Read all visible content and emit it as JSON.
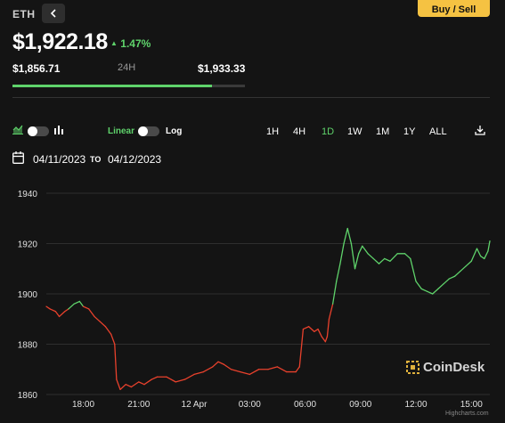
{
  "header": {
    "symbol": "ETH",
    "share_icon": "share-icon",
    "buy_label": "Buy / Sell"
  },
  "price": {
    "value": "$1,922.18",
    "change": "1.47%",
    "change_color": "#5fd36b"
  },
  "range": {
    "low": "$1,856.71",
    "label": "24H",
    "high": "$1,933.33",
    "position_fraction": 0.86
  },
  "controls": {
    "chart_type_icons": [
      "area-chart-icon",
      "bar-chart-icon"
    ],
    "scale_linear": "Linear",
    "scale_log": "Log",
    "timeframes": [
      "1H",
      "4H",
      "1D",
      "1W",
      "1M",
      "1Y",
      "ALL"
    ],
    "active_timeframe": "1D",
    "download_icon": "download-icon"
  },
  "dates": {
    "from": "04/11/2023",
    "to_label": "TO",
    "to": "04/12/2023"
  },
  "watermark": "CoinDesk",
  "credits": "Highcharts.com",
  "chart_data": {
    "type": "line",
    "title": "",
    "xlabel": "",
    "ylabel": "",
    "ylim": [
      1860,
      1940
    ],
    "y_ticks": [
      1860,
      1880,
      1900,
      1920,
      1940
    ],
    "x_ticks": [
      "18:00",
      "21:00",
      "12 Apr",
      "03:00",
      "06:00",
      "09:00",
      "12:00",
      "15:00"
    ],
    "x_tick_hours": [
      18,
      21,
      24,
      27,
      30,
      33,
      36,
      39
    ],
    "xlim_hours": [
      16,
      40
    ],
    "grid": true,
    "series": [
      {
        "color_up": "#5fd36b",
        "color_down": "#e8412c",
        "points": [
          [
            16.0,
            1895
          ],
          [
            16.2,
            1894
          ],
          [
            16.5,
            1893
          ],
          [
            16.7,
            1891
          ],
          [
            17.0,
            1893
          ],
          [
            17.2,
            1894
          ],
          [
            17.5,
            1896
          ],
          [
            17.8,
            1897
          ],
          [
            18.0,
            1895
          ],
          [
            18.3,
            1894
          ],
          [
            18.6,
            1891
          ],
          [
            18.9,
            1889
          ],
          [
            19.2,
            1887
          ],
          [
            19.5,
            1884
          ],
          [
            19.7,
            1880
          ],
          [
            19.8,
            1866
          ],
          [
            20.0,
            1862
          ],
          [
            20.3,
            1864
          ],
          [
            20.6,
            1863
          ],
          [
            21.0,
            1865
          ],
          [
            21.3,
            1864
          ],
          [
            21.7,
            1866
          ],
          [
            22.0,
            1867
          ],
          [
            22.5,
            1867
          ],
          [
            23.0,
            1865
          ],
          [
            23.5,
            1866
          ],
          [
            24.0,
            1868
          ],
          [
            24.5,
            1869
          ],
          [
            25.0,
            1871
          ],
          [
            25.3,
            1873
          ],
          [
            25.6,
            1872
          ],
          [
            26.0,
            1870
          ],
          [
            26.5,
            1869
          ],
          [
            27.0,
            1868
          ],
          [
            27.5,
            1870
          ],
          [
            28.0,
            1870
          ],
          [
            28.5,
            1871
          ],
          [
            29.0,
            1869
          ],
          [
            29.5,
            1869
          ],
          [
            29.7,
            1871
          ],
          [
            29.9,
            1886
          ],
          [
            30.2,
            1887
          ],
          [
            30.5,
            1885
          ],
          [
            30.7,
            1886
          ],
          [
            30.9,
            1883
          ],
          [
            31.1,
            1881
          ],
          [
            31.2,
            1883
          ],
          [
            31.3,
            1890
          ],
          [
            31.5,
            1896
          ],
          [
            31.7,
            1905
          ],
          [
            31.9,
            1912
          ],
          [
            32.1,
            1920
          ],
          [
            32.3,
            1926
          ],
          [
            32.5,
            1920
          ],
          [
            32.7,
            1910
          ],
          [
            32.9,
            1916
          ],
          [
            33.1,
            1919
          ],
          [
            33.4,
            1916
          ],
          [
            33.7,
            1914
          ],
          [
            34.0,
            1912
          ],
          [
            34.3,
            1914
          ],
          [
            34.6,
            1913
          ],
          [
            35.0,
            1916
          ],
          [
            35.4,
            1916
          ],
          [
            35.7,
            1914
          ],
          [
            36.0,
            1905
          ],
          [
            36.3,
            1902
          ],
          [
            36.6,
            1901
          ],
          [
            36.9,
            1900
          ],
          [
            37.2,
            1902
          ],
          [
            37.5,
            1904
          ],
          [
            37.8,
            1906
          ],
          [
            38.1,
            1907
          ],
          [
            38.4,
            1909
          ],
          [
            38.7,
            1911
          ],
          [
            39.0,
            1913
          ],
          [
            39.3,
            1918
          ],
          [
            39.5,
            1915
          ],
          [
            39.7,
            1914
          ],
          [
            39.9,
            1917
          ],
          [
            40.0,
            1921
          ]
        ]
      }
    ]
  }
}
